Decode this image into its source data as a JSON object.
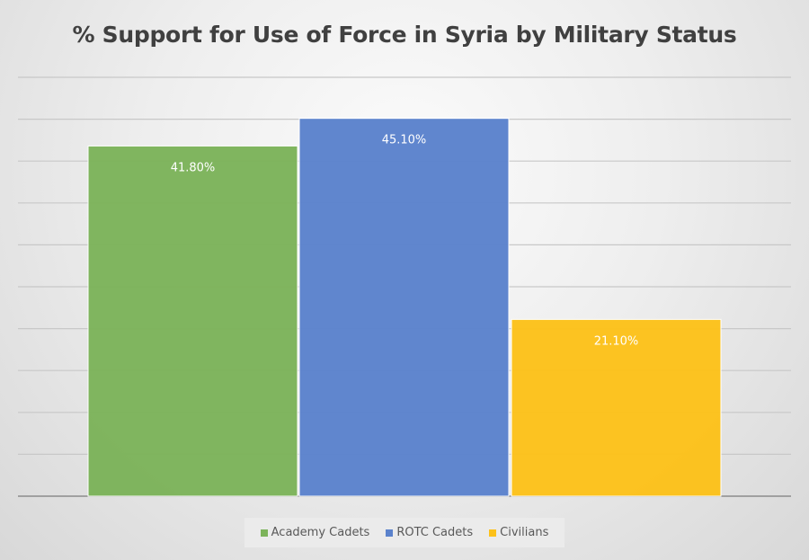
{
  "chart_data": {
    "type": "bar",
    "title": "% Support for Use of Force in Syria by Military Status",
    "categories": [
      "Academy Cadets",
      "ROTC Cadets",
      "Civilians"
    ],
    "values": [
      41.8,
      45.1,
      21.1
    ],
    "data_labels": [
      "41.80%",
      "45.10%",
      "21.10%"
    ],
    "colors": [
      "#7cb35a",
      "#5b82cc",
      "#fcc11a"
    ],
    "ylim": [
      0,
      50
    ],
    "ytick_step": 5,
    "grid": true,
    "legend": "bottom",
    "xlabel": "",
    "ylabel": ""
  }
}
